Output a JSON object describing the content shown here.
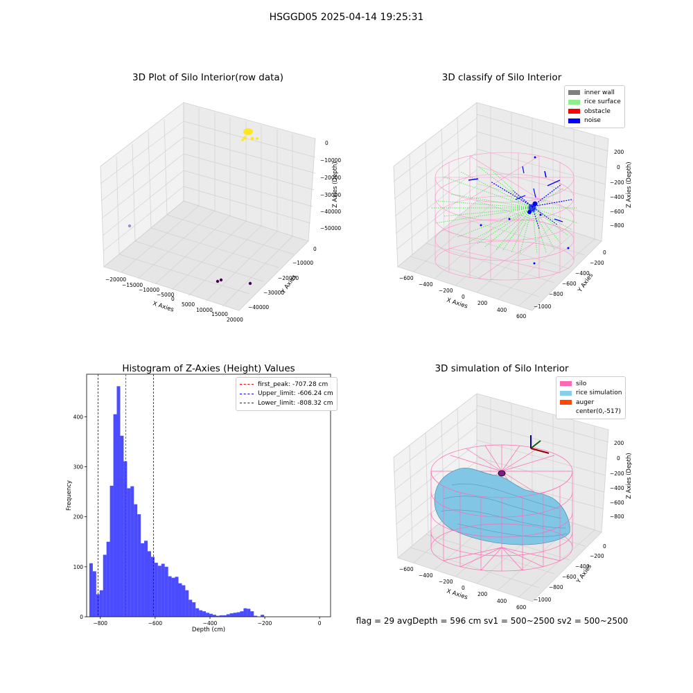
{
  "figure": {
    "suptitle": "HSGGD05 2025-04-14 19:25:31",
    "footer": "flag = 29  avgDepth = 596 cm  sv1 = 500~2500  sv2 = 500~2500"
  },
  "chart_data": [
    {
      "type": "scatter",
      "title": "3D Plot of Silo Interior(row data)",
      "xlabel": "X Axies",
      "ylabel": "Y Axies",
      "zlabel": "Z Axies (Depth)",
      "x_ticks": [
        "−20000",
        "−15000",
        "−10000",
        "−5000",
        "0",
        "5000",
        "10000",
        "15000",
        "20000"
      ],
      "y_ticks": [
        "0",
        "−10000",
        "−20000",
        "−30000",
        "−40000"
      ],
      "z_ticks": [
        "0",
        "−10000",
        "−20000",
        "−30000",
        "−40000",
        "−50000"
      ],
      "grid": true
    },
    {
      "type": "scatter",
      "title": "3D classify of Silo Interior",
      "xlabel": "X Axies",
      "ylabel": "Y Axies",
      "zlabel": "Z Axies (Depth)",
      "x_ticks": [
        "−600",
        "−400",
        "−200",
        "0",
        "200",
        "400",
        "600"
      ],
      "y_ticks": [
        "0",
        "−200",
        "−400",
        "−600",
        "−800",
        "−1000"
      ],
      "z_ticks": [
        "200",
        "0",
        "−200",
        "−400",
        "−600",
        "−800"
      ],
      "legend": [
        {
          "label": "inner wall",
          "color": "#808080"
        },
        {
          "label": "rice surface",
          "color": "#90ee90"
        },
        {
          "label": "obstacle",
          "color": "#ff0000"
        },
        {
          "label": "noise",
          "color": "#0000ff"
        }
      ],
      "legend_position": "top-right",
      "grid": true
    },
    {
      "type": "bar",
      "title": "Histogram of Z-Axies (Height) Values",
      "xlabel": "Depth (cm)",
      "ylabel": "Frequency",
      "xlim": [
        -850,
        40
      ],
      "ylim": [
        0,
        485
      ],
      "x_ticks": [
        -800,
        -600,
        -400,
        -200,
        0
      ],
      "x_tick_labels": [
        "−800",
        "−600",
        "−400",
        "−200",
        "0"
      ],
      "y_ticks": [
        0,
        100,
        200,
        300,
        400
      ],
      "bin_start": -840,
      "bin_width": 12.5,
      "values": [
        107,
        91,
        45,
        53,
        124,
        150,
        262,
        405,
        461,
        362,
        311,
        257,
        261,
        225,
        205,
        147,
        152,
        131,
        120,
        108,
        102,
        106,
        100,
        81,
        78,
        80,
        67,
        63,
        53,
        34,
        29,
        17,
        13,
        11,
        8,
        6,
        4,
        2,
        3,
        3,
        5,
        7,
        8,
        9,
        11,
        17,
        16,
        11,
        2,
        0,
        4
      ],
      "color": "#0000ff",
      "lines": [
        {
          "label": "first_peak: -707.28 cm",
          "x": -707.28,
          "color": "#ff0000"
        },
        {
          "label": "Upper_limit: -606.24 cm",
          "x": -606.24,
          "color": "#0000ff"
        },
        {
          "label": "Lower_limit: -808.32 cm",
          "x": -808.32,
          "color": "#0000ff"
        }
      ],
      "legend_position": "top-right"
    },
    {
      "type": "surface",
      "title": "3D simulation of Silo Interior",
      "xlabel": "X Axies",
      "ylabel": "Y Axies",
      "zlabel": "Z Axies (Depth)",
      "x_ticks": [
        "−600",
        "−400",
        "−200",
        "0",
        "200",
        "400",
        "600"
      ],
      "y_ticks": [
        "0",
        "−200",
        "−400",
        "−600",
        "−800",
        "−1000"
      ],
      "z_ticks": [
        "200",
        "0",
        "−200",
        "−400",
        "−600",
        "−800"
      ],
      "legend": [
        {
          "label": "silo",
          "color": "#ff69b4"
        },
        {
          "label": "rice simulation",
          "color": "#87ceeb"
        },
        {
          "label": "auger",
          "color": "#ff4500"
        },
        {
          "label": "center(0,-517)",
          "color": "#ffffff"
        }
      ],
      "legend_position": "top-right",
      "grid": true
    }
  ]
}
